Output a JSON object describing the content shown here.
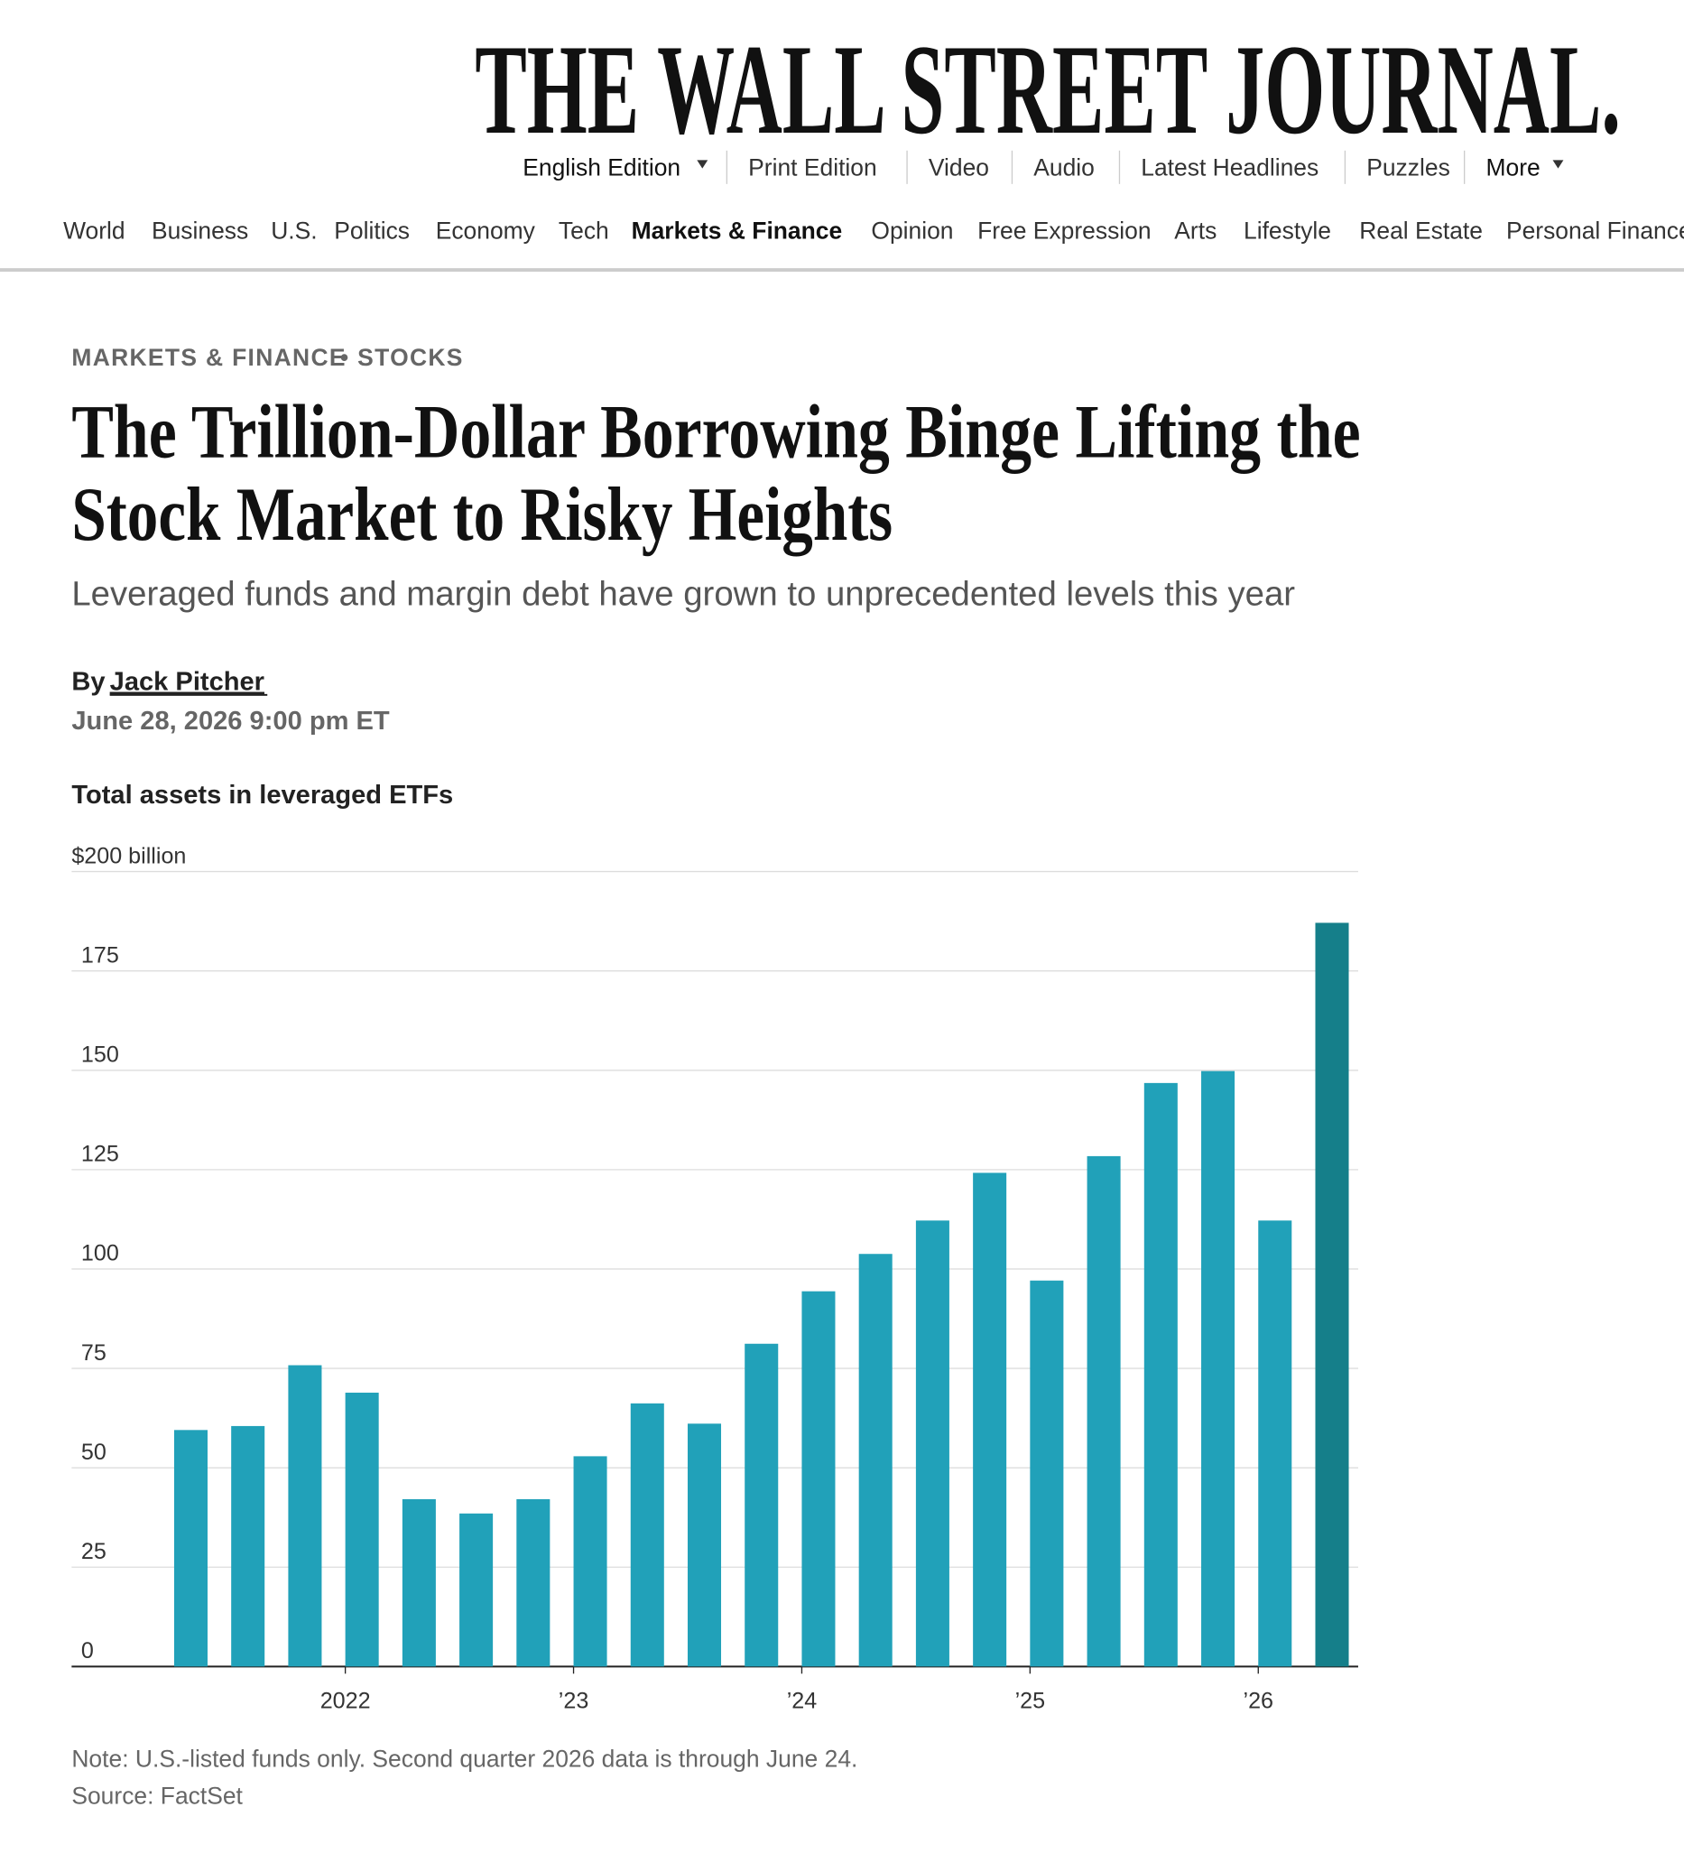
{
  "header": {
    "masthead": "THE WALL STREET JOURNAL.",
    "edition_links": [
      "English Edition",
      "Print Edition",
      "Video",
      "Audio",
      "Latest Headlines",
      "Puzzles",
      "More"
    ],
    "sections": [
      "World",
      "Business",
      "U.S.",
      "Politics",
      "Economy",
      "Tech",
      "Markets & Finance",
      "Opinion",
      "Free Expression",
      "Arts",
      "Lifestyle",
      "Real Estate",
      "Personal Finance"
    ]
  },
  "article": {
    "section": "MARKETS & FINANCE",
    "subsection": "• STOCKS",
    "headline": [
      "The Trillion-Dollar Borrowing Binge Lifting the",
      "Stock Market to Risky Heights"
    ],
    "subtitle": "Leveraged funds and margin debt have grown to unprecedented levels this year",
    "byline": "By",
    "author": "Jack Pitcher",
    "date": "June 28, 2026 9:00 pm ET"
  },
  "chart_data": {
    "type": "bar",
    "title": "Total assets in leveraged ETFs",
    "categories": [
      null,
      null,
      null,
      "2022",
      null,
      null,
      null,
      "’23",
      null,
      null,
      null,
      "’24",
      null,
      null,
      null,
      "’25",
      null,
      null,
      null,
      "’26",
      null
    ],
    "values": [
      59.5,
      60.5,
      75.8,
      68.9,
      42.1,
      38.5,
      42.1,
      52.9,
      66.2,
      61.1,
      81.2,
      94.4,
      103.8,
      112.2,
      124.2,
      97.1,
      128.4,
      146.8,
      149.8,
      112.2,
      187.1
    ],
    "colors": [
      "#21a1b9",
      "#21a1b9",
      "#21a1b9",
      "#21a1b9",
      "#21a1b9",
      "#21a1b9",
      "#21a1b9",
      "#21a1b9",
      "#21a1b9",
      "#21a1b9",
      "#21a1b9",
      "#21a1b9",
      "#21a1b9",
      "#21a1b9",
      "#21a1b9",
      "#21a1b9",
      "#21a1b9",
      "#21a1b9",
      "#21a1b9",
      "#21a1b9",
      "#157f8a"
    ],
    "ylim": [
      0,
      200
    ],
    "yticks": [
      0,
      25,
      50,
      75,
      100,
      125,
      150,
      175,
      {
        "value": 200,
        "label": "$200 billion"
      }
    ],
    "grid": true,
    "note": "Note: U.S.-listed funds only. Second quarter 2026 data is through June 24.",
    "source": "Source: FactSet"
  }
}
